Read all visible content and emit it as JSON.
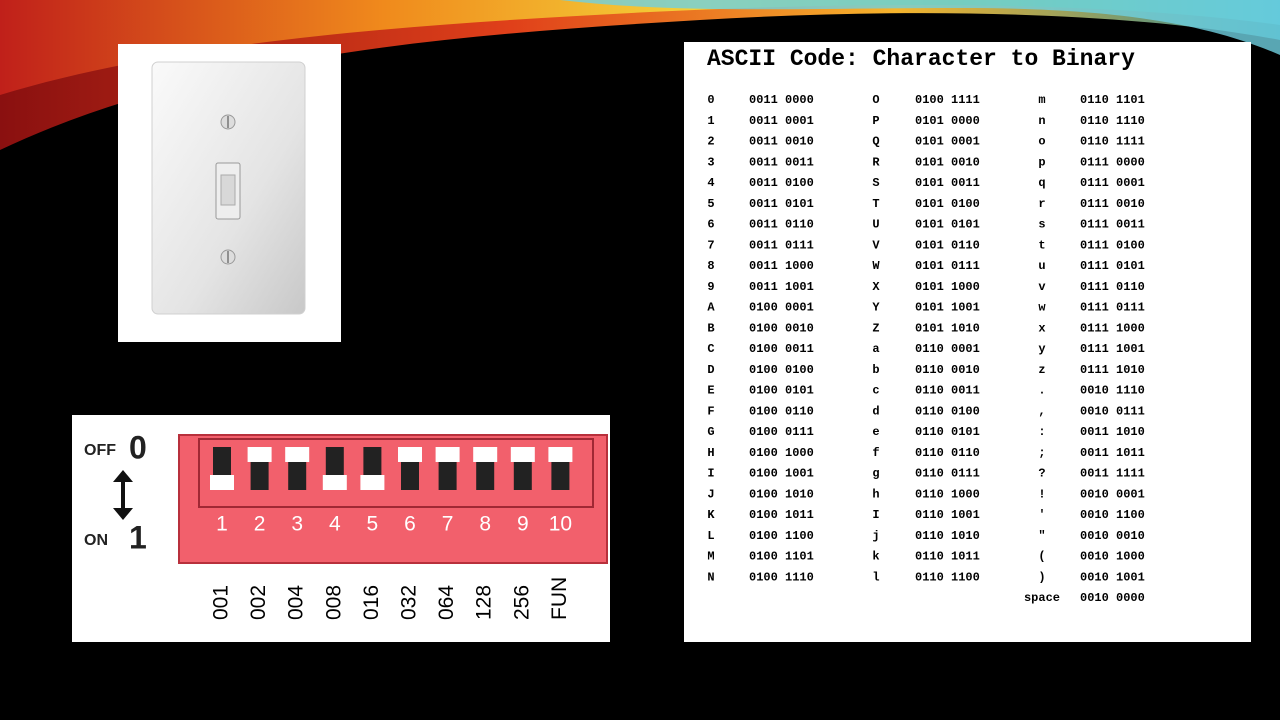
{
  "ascii_table": {
    "title": "ASCII Code: Character to Binary",
    "columns": [
      [
        [
          "0",
          "0011 0000"
        ],
        [
          "1",
          "0011 0001"
        ],
        [
          "2",
          "0011 0010"
        ],
        [
          "3",
          "0011 0011"
        ],
        [
          "4",
          "0011 0100"
        ],
        [
          "5",
          "0011 0101"
        ],
        [
          "6",
          "0011 0110"
        ],
        [
          "7",
          "0011 0111"
        ],
        [
          "8",
          "0011 1000"
        ],
        [
          "9",
          "0011 1001"
        ],
        [
          "A",
          "0100 0001"
        ],
        [
          "B",
          "0100 0010"
        ],
        [
          "C",
          "0100 0011"
        ],
        [
          "D",
          "0100 0100"
        ],
        [
          "E",
          "0100 0101"
        ],
        [
          "F",
          "0100 0110"
        ],
        [
          "G",
          "0100 0111"
        ],
        [
          "H",
          "0100 1000"
        ],
        [
          "I",
          "0100 1001"
        ],
        [
          "J",
          "0100 1010"
        ],
        [
          "K",
          "0100 1011"
        ],
        [
          "L",
          "0100 1100"
        ],
        [
          "M",
          "0100 1101"
        ],
        [
          "N",
          "0100 1110"
        ]
      ],
      [
        [
          "O",
          "0100 1111"
        ],
        [
          "P",
          "0101 0000"
        ],
        [
          "Q",
          "0101 0001"
        ],
        [
          "R",
          "0101 0010"
        ],
        [
          "S",
          "0101 0011"
        ],
        [
          "T",
          "0101 0100"
        ],
        [
          "U",
          "0101 0101"
        ],
        [
          "V",
          "0101 0110"
        ],
        [
          "W",
          "0101 0111"
        ],
        [
          "X",
          "0101 1000"
        ],
        [
          "Y",
          "0101 1001"
        ],
        [
          "Z",
          "0101 1010"
        ],
        [
          "a",
          "0110 0001"
        ],
        [
          "b",
          "0110 0010"
        ],
        [
          "c",
          "0110 0011"
        ],
        [
          "d",
          "0110 0100"
        ],
        [
          "e",
          "0110 0101"
        ],
        [
          "f",
          "0110 0110"
        ],
        [
          "g",
          "0110 0111"
        ],
        [
          "h",
          "0110 1000"
        ],
        [
          "I",
          "0110 1001"
        ],
        [
          "j",
          "0110 1010"
        ],
        [
          "k",
          "0110 1011"
        ],
        [
          "l",
          "0110 1100"
        ]
      ],
      [
        [
          "m",
          "0110 1101"
        ],
        [
          "n",
          "0110 1110"
        ],
        [
          "o",
          "0110 1111"
        ],
        [
          "p",
          "0111 0000"
        ],
        [
          "q",
          "0111 0001"
        ],
        [
          "r",
          "0111 0010"
        ],
        [
          "s",
          "0111 0011"
        ],
        [
          "t",
          "0111 0100"
        ],
        [
          "u",
          "0111 0101"
        ],
        [
          "v",
          "0111 0110"
        ],
        [
          "w",
          "0111 0111"
        ],
        [
          "x",
          "0111 1000"
        ],
        [
          "y",
          "0111 1001"
        ],
        [
          "z",
          "0111 1010"
        ],
        [
          ".",
          "0010 1110"
        ],
        [
          ",",
          "0010 0111"
        ],
        [
          ":",
          "0011 1010"
        ],
        [
          ";",
          "0011 1011"
        ],
        [
          "?",
          "0011 1111"
        ],
        [
          "!",
          "0010 0001"
        ],
        [
          "'",
          "0010 1100"
        ],
        [
          "\"",
          "0010 0010"
        ],
        [
          "(",
          "0010 1000"
        ],
        [
          ")",
          "0010 1001"
        ],
        [
          "space",
          "0010 0000"
        ]
      ]
    ]
  },
  "dip_switch": {
    "off_label": "OFF",
    "off_value": "0",
    "on_label": "ON",
    "on_value": "1",
    "switches": [
      {
        "number": "1",
        "label": "001",
        "on": true
      },
      {
        "number": "2",
        "label": "002",
        "on": false
      },
      {
        "number": "3",
        "label": "004",
        "on": false
      },
      {
        "number": "4",
        "label": "008",
        "on": true
      },
      {
        "number": "5",
        "label": "016",
        "on": true
      },
      {
        "number": "6",
        "label": "032",
        "on": false
      },
      {
        "number": "7",
        "label": "064",
        "on": false
      },
      {
        "number": "8",
        "label": "128",
        "on": false
      },
      {
        "number": "9",
        "label": "256",
        "on": false
      },
      {
        "number": "10",
        "label": "FUN",
        "on": false
      }
    ]
  }
}
